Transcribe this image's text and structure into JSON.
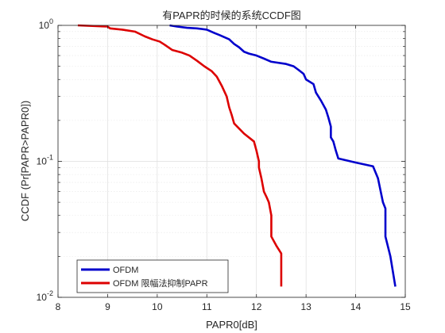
{
  "chart_data": {
    "type": "line",
    "title": "有PAPR的时候的系统CCDF图",
    "xlabel": "PAPR0[dB]",
    "ylabel": "CCDF (Pr[PAPR>PAPR0])",
    "xlim": [
      8,
      15
    ],
    "ylim": [
      0.01,
      1
    ],
    "yscale": "log",
    "grid": true,
    "xticks": [
      "8",
      "9",
      "10",
      "11",
      "12",
      "13",
      "14",
      "15"
    ],
    "yticks": [
      {
        "value": 1,
        "base": "10",
        "exp": "0"
      },
      {
        "value": 0.1,
        "base": "10",
        "exp": "-1"
      },
      {
        "value": 0.01,
        "base": "10",
        "exp": "-2"
      }
    ],
    "legend": {
      "position": "bottom-left"
    },
    "series": [
      {
        "name": "OFDM",
        "color": "#0000cc",
        "points": [
          [
            10.25,
            1.0
          ],
          [
            10.4,
            0.98
          ],
          [
            10.6,
            0.96
          ],
          [
            10.8,
            0.95
          ],
          [
            11.0,
            0.93
          ],
          [
            11.15,
            0.88
          ],
          [
            11.25,
            0.85
          ],
          [
            11.35,
            0.82
          ],
          [
            11.45,
            0.79
          ],
          [
            11.55,
            0.73
          ],
          [
            11.65,
            0.69
          ],
          [
            11.75,
            0.64
          ],
          [
            11.85,
            0.62
          ],
          [
            12.0,
            0.6
          ],
          [
            12.15,
            0.57
          ],
          [
            12.3,
            0.54
          ],
          [
            12.6,
            0.52
          ],
          [
            12.75,
            0.5
          ],
          [
            12.85,
            0.47
          ],
          [
            12.95,
            0.44
          ],
          [
            13.0,
            0.4
          ],
          [
            13.15,
            0.37
          ],
          [
            13.2,
            0.32
          ],
          [
            13.3,
            0.28
          ],
          [
            13.4,
            0.24
          ],
          [
            13.45,
            0.21
          ],
          [
            13.5,
            0.18
          ],
          [
            13.5,
            0.15
          ],
          [
            13.55,
            0.14
          ],
          [
            13.6,
            0.12
          ],
          [
            13.65,
            0.105
          ],
          [
            14.0,
            0.098
          ],
          [
            14.35,
            0.092
          ],
          [
            14.45,
            0.075
          ],
          [
            14.55,
            0.05
          ],
          [
            14.6,
            0.045
          ],
          [
            14.6,
            0.028
          ],
          [
            14.7,
            0.02
          ],
          [
            14.8,
            0.012
          ]
        ]
      },
      {
        "name": "OFDM 限幅法抑制PAPR",
        "color": "#dd0000",
        "points": [
          [
            8.4,
            1.0
          ],
          [
            9.0,
            0.98
          ],
          [
            9.05,
            0.95
          ],
          [
            9.3,
            0.93
          ],
          [
            9.55,
            0.9
          ],
          [
            9.75,
            0.83
          ],
          [
            9.9,
            0.79
          ],
          [
            10.05,
            0.76
          ],
          [
            10.15,
            0.72
          ],
          [
            10.3,
            0.66
          ],
          [
            10.5,
            0.63
          ],
          [
            10.65,
            0.6
          ],
          [
            10.8,
            0.55
          ],
          [
            10.95,
            0.5
          ],
          [
            11.1,
            0.46
          ],
          [
            11.2,
            0.42
          ],
          [
            11.3,
            0.36
          ],
          [
            11.4,
            0.3
          ],
          [
            11.45,
            0.25
          ],
          [
            11.5,
            0.22
          ],
          [
            11.55,
            0.19
          ],
          [
            11.75,
            0.16
          ],
          [
            11.95,
            0.14
          ],
          [
            12.0,
            0.12
          ],
          [
            12.05,
            0.1
          ],
          [
            12.05,
            0.09
          ],
          [
            12.1,
            0.075
          ],
          [
            12.15,
            0.06
          ],
          [
            12.2,
            0.055
          ],
          [
            12.25,
            0.05
          ],
          [
            12.3,
            0.04
          ],
          [
            12.3,
            0.035
          ],
          [
            12.3,
            0.028
          ],
          [
            12.4,
            0.024
          ],
          [
            12.5,
            0.021
          ],
          [
            12.5,
            0.015
          ],
          [
            12.5,
            0.012
          ]
        ]
      }
    ]
  }
}
